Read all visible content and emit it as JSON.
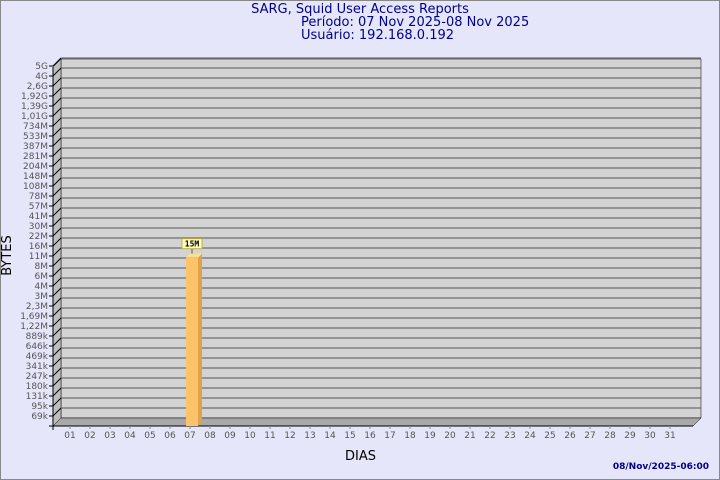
{
  "header": {
    "title": "SARG, Squid User Access Reports",
    "period": "Período: 07 Nov 2025-08 Nov 2025",
    "user": "Usuário: 192.168.0.192"
  },
  "footer": {
    "timestamp": "08/Nov/2025-06:00"
  },
  "chart_data": {
    "type": "bar",
    "xlabel": "DIAS",
    "ylabel": "BYTES",
    "y_scale": "log",
    "y_tick_labels": [
      "5G",
      "4G",
      "2,6G",
      "1,92G",
      "1,39G",
      "1,01G",
      "734M",
      "533M",
      "387M",
      "281M",
      "204M",
      "148M",
      "108M",
      "78M",
      "57M",
      "41M",
      "30M",
      "22M",
      "16M",
      "11M",
      "8M",
      "6M",
      "4M",
      "3M",
      "2,3M",
      "1,69M",
      "1,22M",
      "889k",
      "646k",
      "469k",
      "341k",
      "247k",
      "180k",
      "131k",
      "95k",
      "69k"
    ],
    "categories": [
      "01",
      "02",
      "03",
      "04",
      "05",
      "06",
      "07",
      "08",
      "09",
      "10",
      "11",
      "12",
      "13",
      "14",
      "15",
      "16",
      "17",
      "18",
      "19",
      "20",
      "21",
      "22",
      "23",
      "24",
      "25",
      "26",
      "27",
      "28",
      "29",
      "30",
      "31"
    ],
    "values": {
      "07": 15000000
    },
    "data_labels": {
      "07": "15M"
    },
    "grid": true,
    "colors": {
      "bar": "#fcc46a",
      "bar_side": "#e0a34a",
      "wall": "#d3d3d3",
      "text": "#00008b"
    }
  }
}
